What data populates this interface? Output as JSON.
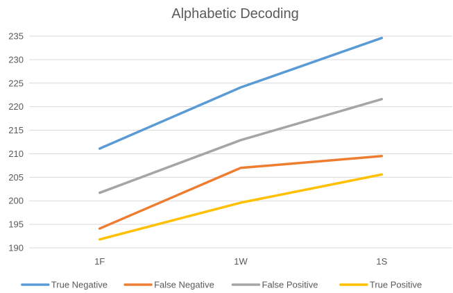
{
  "chart_data": {
    "type": "line",
    "title": "Alphabetic Decoding",
    "xlabel": "",
    "ylabel": "",
    "categories": [
      "1F",
      "1W",
      "1S"
    ],
    "ylim": [
      190,
      235
    ],
    "yticks": [
      190,
      195,
      200,
      205,
      210,
      215,
      220,
      225,
      230,
      235
    ],
    "grid": true,
    "legend_position": "bottom",
    "series": [
      {
        "name": "True Negative",
        "color": "#5b9bd5",
        "values": [
          211.1,
          224.1,
          234.6
        ]
      },
      {
        "name": "False Negative",
        "color": "#ed7d31",
        "values": [
          194.1,
          207.0,
          209.5
        ]
      },
      {
        "name": "False Positive",
        "color": "#a5a5a5",
        "values": [
          201.7,
          212.9,
          221.6
        ]
      },
      {
        "name": "True Positive",
        "color": "#ffc000",
        "values": [
          191.8,
          199.6,
          205.6
        ]
      }
    ]
  }
}
